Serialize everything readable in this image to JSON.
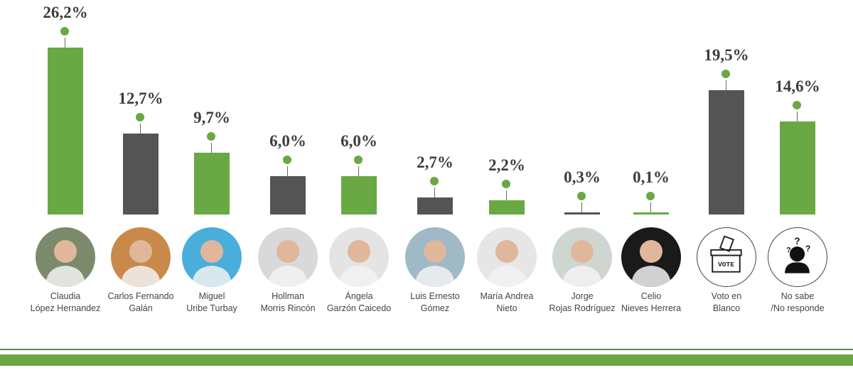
{
  "chart_data": {
    "type": "bar",
    "title": "",
    "xlabel": "",
    "ylabel": "",
    "ylim": [
      0,
      30
    ],
    "grid": false,
    "legend": null,
    "categories": [
      "Claudia López Hernandez",
      "Carlos Fernando Galán",
      "Miguel Uribe Turbay",
      "Hollman Morris Rincón",
      "Ángela Garzón Caicedo",
      "Luis Ernesto Gómez",
      "María Andrea Nieto",
      "Jorge Rojas Rodríguez",
      "Celio Nieves Herrera",
      "Voto en Blanco",
      "No sabe /No responde"
    ],
    "values": [
      26.2,
      12.7,
      9.7,
      6.0,
      6.0,
      2.7,
      2.2,
      0.3,
      0.1,
      19.5,
      14.6
    ],
    "value_labels": [
      "26,2%",
      "12,7%",
      "9,7%",
      "6,0%",
      "6,0%",
      "2,7%",
      "2,2%",
      "0,3%",
      "0,1%",
      "19,5%",
      "14,6%"
    ],
    "bar_colors": [
      "#6aa843",
      "#545454",
      "#6aa843",
      "#545454",
      "#6aa843",
      "#545454",
      "#6aa843",
      "#545454",
      "#6aa843",
      "#545454",
      "#6aa843"
    ]
  },
  "colors": {
    "green": "#6aa843",
    "dark": "#545454",
    "text": "#3d3d3d"
  },
  "candidates": [
    {
      "line1": "Claudia",
      "line2": "López Hernandez",
      "pct": "26,2%",
      "avatar": "photo",
      "bg": "#7a8a6a"
    },
    {
      "line1": "Carlos Fernando",
      "line2": "Galán",
      "pct": "12,7%",
      "avatar": "photo",
      "bg": "#c8894a"
    },
    {
      "line1": "Miguel",
      "line2": "Uribe Turbay",
      "pct": "9,7%",
      "avatar": "photo",
      "bg": "#4aaedb"
    },
    {
      "line1": "Hollman",
      "line2": "Morris Rincón",
      "pct": "6,0%",
      "avatar": "photo",
      "bg": "#d9d9d9"
    },
    {
      "line1": "Ángela",
      "line2": "Garzón Caicedo",
      "pct": "6,0%",
      "avatar": "photo",
      "bg": "#e4e4e4"
    },
    {
      "line1": "Luis Ernesto",
      "line2": "Gómez",
      "pct": "2,7%",
      "avatar": "photo",
      "bg": "#9fb9c7"
    },
    {
      "line1": "María Andrea",
      "line2": "Nieto",
      "pct": "2,2%",
      "avatar": "photo",
      "bg": "#e6e6e6"
    },
    {
      "line1": "Jorge",
      "line2": "Rojas Rodríguez",
      "pct": "0,3%",
      "avatar": "photo",
      "bg": "#cfd6cf"
    },
    {
      "line1": "Celio",
      "line2": "Nieves Herrera",
      "pct": "0,1%",
      "avatar": "photo",
      "bg": "#1a1a1a"
    },
    {
      "line1": "Voto en",
      "line2": "Blanco",
      "pct": "19,5%",
      "avatar": "ballot-box-icon",
      "bg": "#ffffff",
      "icon_text": "VOTE"
    },
    {
      "line1": "No sabe",
      "line2": "/No responde",
      "pct": "14,6%",
      "avatar": "question-person-icon",
      "bg": "#ffffff"
    }
  ]
}
